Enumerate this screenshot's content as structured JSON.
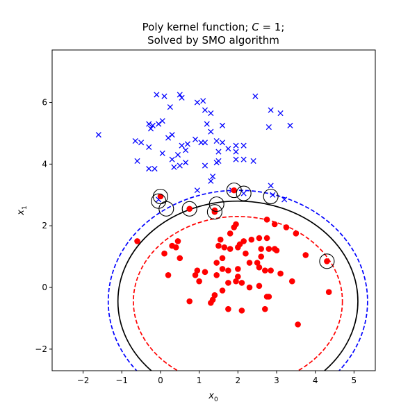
{
  "chart_data": {
    "type": "scatter",
    "title_line1": "Poly kernel function; C = 1;",
    "title_line2": "Solved by SMO algorithm",
    "xlabel_base": "x",
    "xlabel_sub": "0",
    "ylabel_base": "x",
    "ylabel_sub": "1",
    "xlim": [
      -2.8,
      5.55
    ],
    "ylim": [
      -2.7,
      7.7
    ],
    "x_ticks": [
      -2,
      -1,
      0,
      1,
      2,
      3,
      4,
      5
    ],
    "y_ticks": [
      -2,
      0,
      2,
      4,
      6
    ],
    "colors": {
      "positive": "#0000ff",
      "negative": "#ff0000",
      "boundary": "#000000",
      "support_ring": "#000000"
    },
    "boundaries": {
      "center": [
        2.0,
        -0.45
      ],
      "decision": {
        "rx": 3.1,
        "ry": 3.25,
        "style": "solid",
        "color": "#000000"
      },
      "positive_margin": {
        "rx": 3.35,
        "ry": 3.6,
        "style": "dashed",
        "color": "#0000ff"
      },
      "negative_margin": {
        "rx": 2.7,
        "ry": 2.75,
        "style": "dashed",
        "color": "#ff0000"
      }
    },
    "series": [
      {
        "marker": "x",
        "color": "#0000ff",
        "points": [
          [
            -1.6,
            4.95
          ],
          [
            -0.1,
            6.25
          ],
          [
            0.1,
            6.2
          ],
          [
            0.5,
            6.25
          ],
          [
            0.55,
            6.15
          ],
          [
            1.1,
            6.05
          ],
          [
            0.95,
            6.0
          ],
          [
            2.45,
            6.2
          ],
          [
            0.25,
            5.85
          ],
          [
            -0.2,
            5.25
          ],
          [
            -0.25,
            5.15
          ],
          [
            -0.05,
            5.3
          ],
          [
            -0.3,
            5.3
          ],
          [
            0.05,
            5.4
          ],
          [
            1.15,
            5.75
          ],
          [
            1.3,
            5.65
          ],
          [
            1.2,
            5.3
          ],
          [
            1.3,
            5.05
          ],
          [
            1.6,
            5.25
          ],
          [
            2.85,
            5.75
          ],
          [
            3.1,
            5.65
          ],
          [
            2.8,
            5.2
          ],
          [
            3.35,
            5.25
          ],
          [
            -0.65,
            4.75
          ],
          [
            -0.5,
            4.7
          ],
          [
            -0.3,
            4.55
          ],
          [
            0.3,
            4.95
          ],
          [
            0.2,
            4.85
          ],
          [
            0.55,
            4.6
          ],
          [
            0.7,
            4.65
          ],
          [
            0.9,
            4.8
          ],
          [
            1.05,
            4.7
          ],
          [
            1.15,
            4.7
          ],
          [
            1.45,
            4.75
          ],
          [
            1.6,
            4.7
          ],
          [
            1.75,
            4.5
          ],
          [
            1.95,
            4.6
          ],
          [
            2.15,
            4.6
          ],
          [
            1.5,
            4.4
          ],
          [
            0.05,
            4.35
          ],
          [
            0.3,
            4.15
          ],
          [
            0.45,
            4.3
          ],
          [
            0.65,
            4.45
          ],
          [
            0.65,
            4.05
          ],
          [
            0.5,
            3.95
          ],
          [
            0.35,
            3.9
          ],
          [
            -0.3,
            3.85
          ],
          [
            -0.15,
            3.85
          ],
          [
            -0.6,
            4.1
          ],
          [
            1.15,
            3.95
          ],
          [
            1.45,
            4.05
          ],
          [
            1.5,
            4.1
          ],
          [
            1.95,
            4.4
          ],
          [
            1.95,
            4.15
          ],
          [
            2.15,
            4.15
          ],
          [
            2.4,
            4.1
          ],
          [
            1.35,
            3.6
          ],
          [
            1.3,
            3.45
          ],
          [
            2.85,
            3.3
          ],
          [
            1.85,
            3.15
          ],
          [
            2.15,
            3.05
          ],
          [
            0.95,
            3.15
          ],
          [
            2.9,
            3.0
          ],
          [
            3.2,
            2.85
          ],
          [
            -0.05,
            2.85
          ]
        ]
      },
      {
        "marker": "o",
        "color": "#ff0000",
        "points": [
          [
            0.0,
            2.95
          ],
          [
            1.9,
            3.15
          ],
          [
            0.75,
            2.55
          ],
          [
            1.4,
            2.5
          ],
          [
            1.4,
            2.45
          ],
          [
            2.75,
            2.2
          ],
          [
            2.95,
            2.05
          ],
          [
            3.25,
            1.95
          ],
          [
            1.95,
            2.05
          ],
          [
            1.9,
            1.95
          ],
          [
            1.8,
            1.75
          ],
          [
            3.5,
            1.75
          ],
          [
            2.55,
            1.6
          ],
          [
            2.75,
            1.6
          ],
          [
            2.35,
            1.55
          ],
          [
            1.55,
            1.55
          ],
          [
            2.15,
            1.5
          ],
          [
            2.05,
            1.4
          ],
          [
            2.0,
            1.3
          ],
          [
            1.5,
            1.35
          ],
          [
            1.65,
            1.3
          ],
          [
            -0.6,
            1.5
          ],
          [
            0.45,
            1.5
          ],
          [
            0.3,
            1.35
          ],
          [
            0.4,
            1.3
          ],
          [
            0.1,
            1.1
          ],
          [
            0.5,
            0.95
          ],
          [
            1.8,
            1.25
          ],
          [
            2.6,
            1.25
          ],
          [
            2.95,
            1.25
          ],
          [
            2.8,
            1.25
          ],
          [
            3.0,
            1.2
          ],
          [
            2.2,
            1.1
          ],
          [
            1.6,
            0.95
          ],
          [
            2.6,
            1.0
          ],
          [
            3.75,
            1.05
          ],
          [
            1.45,
            0.8
          ],
          [
            2.3,
            0.8
          ],
          [
            2.5,
            0.8
          ],
          [
            2.55,
            0.65
          ],
          [
            2.7,
            0.55
          ],
          [
            3.1,
            0.45
          ],
          [
            1.6,
            0.6
          ],
          [
            1.75,
            0.55
          ],
          [
            2.0,
            0.6
          ],
          [
            2.85,
            0.55
          ],
          [
            4.3,
            0.85
          ],
          [
            0.95,
            0.55
          ],
          [
            0.9,
            0.4
          ],
          [
            1.45,
            0.4
          ],
          [
            2.0,
            0.35
          ],
          [
            1.15,
            0.5
          ],
          [
            0.2,
            0.4
          ],
          [
            1.0,
            0.2
          ],
          [
            1.95,
            0.2
          ],
          [
            2.1,
            0.15
          ],
          [
            1.75,
            0.15
          ],
          [
            3.4,
            0.2
          ],
          [
            2.55,
            0.05
          ],
          [
            2.3,
            0.0
          ],
          [
            1.6,
            -0.1
          ],
          [
            1.4,
            -0.25
          ],
          [
            1.35,
            -0.4
          ],
          [
            1.3,
            -0.5
          ],
          [
            1.75,
            -0.7
          ],
          [
            0.75,
            -0.45
          ],
          [
            2.1,
            -0.75
          ],
          [
            2.75,
            -0.3
          ],
          [
            2.8,
            -0.3
          ],
          [
            2.7,
            -0.7
          ],
          [
            4.35,
            -0.15
          ],
          [
            3.55,
            -1.2
          ]
        ]
      }
    ],
    "support_vectors": [
      [
        0.0,
        2.95
      ],
      [
        -0.05,
        2.8
      ],
      [
        0.15,
        2.55
      ],
      [
        0.75,
        2.55
      ],
      [
        1.45,
        2.7
      ],
      [
        1.4,
        2.45
      ],
      [
        1.9,
        3.15
      ],
      [
        2.15,
        3.05
      ],
      [
        2.85,
        2.95
      ],
      [
        4.3,
        0.85
      ]
    ]
  }
}
